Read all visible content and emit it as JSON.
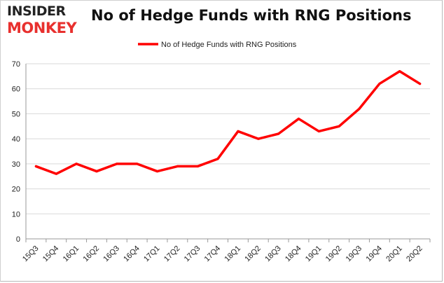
{
  "logo": {
    "line1": "INSIDER",
    "line2": "MONKEY"
  },
  "chart_data": {
    "type": "line",
    "title": "No of Hedge Funds with RNG Positions",
    "categories": [
      "15Q3",
      "15Q4",
      "16Q1",
      "16Q2",
      "16Q3",
      "16Q4",
      "17Q1",
      "17Q2",
      "17Q3",
      "17Q4",
      "18Q1",
      "18Q2",
      "18Q3",
      "18Q4",
      "19Q1",
      "19Q2",
      "19Q3",
      "19Q4",
      "20Q1",
      "20Q2"
    ],
    "series": [
      {
        "name": "No of Hedge Funds with RNG Positions",
        "values": [
          29,
          26,
          30,
          27,
          30,
          30,
          27,
          29,
          29,
          32,
          43,
          40,
          42,
          48,
          43,
          45,
          52,
          62,
          67,
          62
        ]
      }
    ],
    "ylim": [
      0,
      70
    ],
    "yticks": [
      0,
      10,
      20,
      30,
      40,
      50,
      60,
      70
    ],
    "xlabel": "",
    "ylabel": "",
    "grid": true,
    "legend": "top-center",
    "colors": {
      "series": "#ff0000",
      "grid": "#d9d9d9"
    }
  }
}
